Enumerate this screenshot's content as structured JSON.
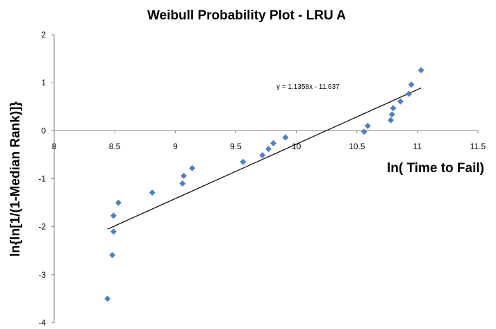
{
  "chart_data": {
    "type": "scatter",
    "title": "Weibull Probability Plot - LRU A",
    "xlabel": "ln( Time to Fail)",
    "ylabel": "ln{ln[1/(1-Median Rank)]}",
    "xlim": [
      8,
      11.5
    ],
    "ylim": [
      -4,
      2
    ],
    "x_ticks": [
      "8",
      "8.5",
      "9",
      "9.5",
      "10",
      "10.5",
      "11",
      "11.5"
    ],
    "y_ticks": [
      "2",
      "1",
      "0",
      "-1",
      "-2",
      "-3",
      "-4"
    ],
    "grid": false,
    "legend": "none",
    "marker": "diamond",
    "point_color": "#4f81bd",
    "series": [
      {
        "points": [
          {
            "x": 8.44,
            "y": -3.5
          },
          {
            "x": 8.48,
            "y": -2.59
          },
          {
            "x": 8.49,
            "y": -2.1
          },
          {
            "x": 8.49,
            "y": -1.77
          },
          {
            "x": 8.53,
            "y": -1.5
          },
          {
            "x": 8.81,
            "y": -1.29
          },
          {
            "x": 9.06,
            "y": -1.1
          },
          {
            "x": 9.07,
            "y": -0.94
          },
          {
            "x": 9.14,
            "y": -0.78
          },
          {
            "x": 9.56,
            "y": -0.65
          },
          {
            "x": 9.72,
            "y": -0.51
          },
          {
            "x": 9.77,
            "y": -0.38
          },
          {
            "x": 9.81,
            "y": -0.26
          },
          {
            "x": 9.91,
            "y": -0.14
          },
          {
            "x": 10.56,
            "y": -0.02
          },
          {
            "x": 10.59,
            "y": 0.1
          },
          {
            "x": 10.78,
            "y": 0.22
          },
          {
            "x": 10.79,
            "y": 0.34
          },
          {
            "x": 10.8,
            "y": 0.47
          },
          {
            "x": 10.86,
            "y": 0.61
          },
          {
            "x": 10.93,
            "y": 0.77
          },
          {
            "x": 10.95,
            "y": 0.96
          },
          {
            "x": 11.03,
            "y": 1.26
          }
        ]
      }
    ],
    "trendline": {
      "slope": 1.1358,
      "intercept": -11.637,
      "x_range": [
        8.44,
        11.03
      ],
      "equation_label": "y = 1.1358x - 11.637"
    }
  }
}
